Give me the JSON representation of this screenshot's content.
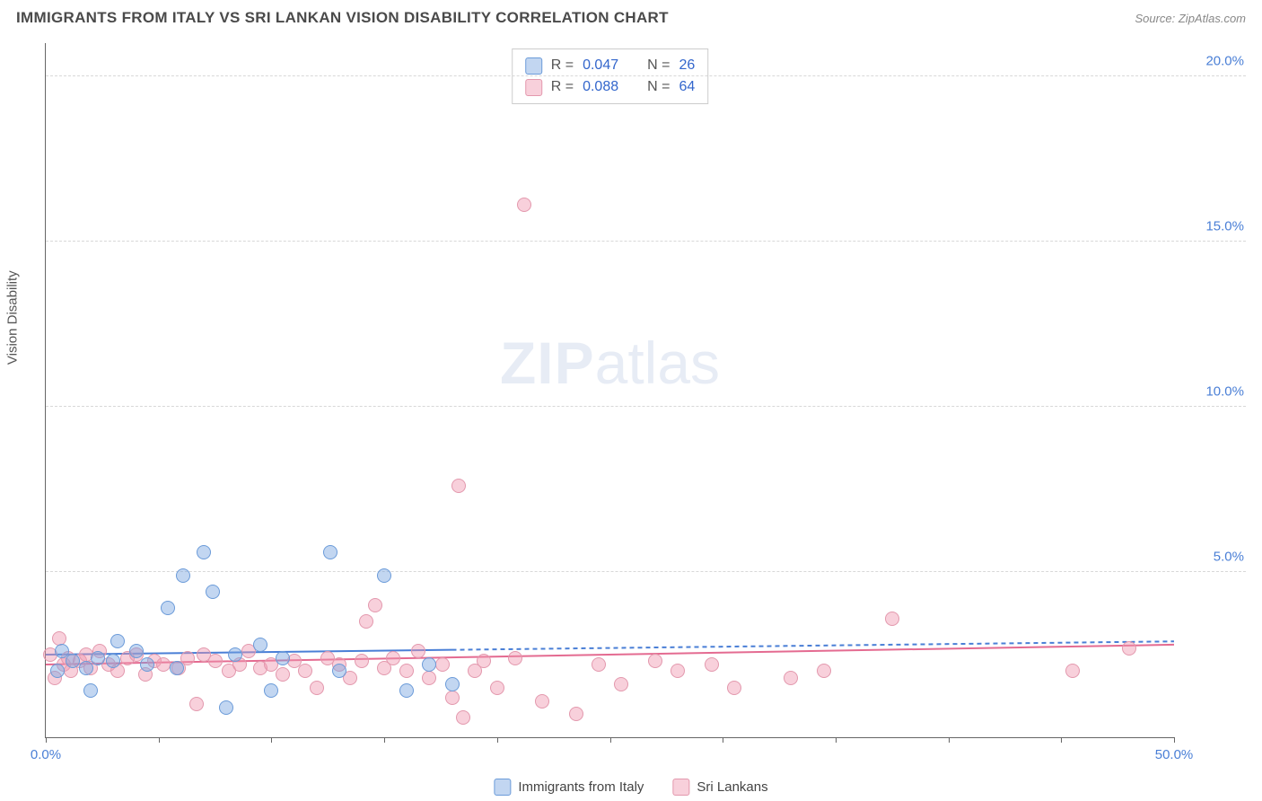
{
  "title": "IMMIGRANTS FROM ITALY VS SRI LANKAN VISION DISABILITY CORRELATION CHART",
  "source": "Source: ZipAtlas.com",
  "watermark_zip": "ZIP",
  "watermark_atlas": "atlas",
  "chart": {
    "type": "scatter",
    "y_label": "Vision Disability",
    "xlim": [
      0,
      50
    ],
    "ylim": [
      0,
      21
    ],
    "x_ticks": [
      0,
      5,
      10,
      15,
      20,
      25,
      30,
      35,
      40,
      45,
      50
    ],
    "x_tick_labels": {
      "0": "0.0%",
      "50": "50.0%"
    },
    "y_ticks": [
      5,
      10,
      15,
      20
    ],
    "y_tick_labels": {
      "5": "5.0%",
      "10": "10.0%",
      "15": "15.0%",
      "20": "20.0%"
    },
    "background_color": "#ffffff",
    "grid_color": "#d8d8d8",
    "point_radius": 8,
    "series": {
      "italy": {
        "label": "Immigrants from Italy",
        "fill_color": "rgba(120,165,225,0.45)",
        "stroke_color": "#6b9bd9",
        "R_label": "R =",
        "R": "0.047",
        "N_label": "N =",
        "N": "26",
        "trend": {
          "y0": 2.5,
          "y1": 2.9,
          "x_solid_end": 18,
          "dash_after": true,
          "color": "#4a7fd6",
          "width": 2
        },
        "points": [
          {
            "x": 0.5,
            "y": 2.0
          },
          {
            "x": 0.7,
            "y": 2.6
          },
          {
            "x": 1.2,
            "y": 2.3
          },
          {
            "x": 1.8,
            "y": 2.1
          },
          {
            "x": 2.0,
            "y": 1.4
          },
          {
            "x": 2.3,
            "y": 2.4
          },
          {
            "x": 3.0,
            "y": 2.3
          },
          {
            "x": 3.2,
            "y": 2.9
          },
          {
            "x": 4.0,
            "y": 2.6
          },
          {
            "x": 4.5,
            "y": 2.2
          },
          {
            "x": 5.4,
            "y": 3.9
          },
          {
            "x": 5.8,
            "y": 2.1
          },
          {
            "x": 6.1,
            "y": 4.9
          },
          {
            "x": 7.0,
            "y": 5.6
          },
          {
            "x": 7.4,
            "y": 4.4
          },
          {
            "x": 8.0,
            "y": 0.9
          },
          {
            "x": 8.4,
            "y": 2.5
          },
          {
            "x": 9.5,
            "y": 2.8
          },
          {
            "x": 10.0,
            "y": 1.4
          },
          {
            "x": 10.5,
            "y": 2.4
          },
          {
            "x": 12.6,
            "y": 5.6
          },
          {
            "x": 13.0,
            "y": 2.0
          },
          {
            "x": 15.0,
            "y": 4.9
          },
          {
            "x": 16.0,
            "y": 1.4
          },
          {
            "x": 17.0,
            "y": 2.2
          },
          {
            "x": 18.0,
            "y": 1.6
          }
        ]
      },
      "srilanka": {
        "label": "Sri Lankans",
        "fill_color": "rgba(240,150,175,0.45)",
        "stroke_color": "#e398ad",
        "R_label": "R =",
        "R": "0.088",
        "N_label": "N =",
        "N": "64",
        "trend": {
          "y0": 2.2,
          "y1": 2.8,
          "x_solid_end": 50,
          "dash_after": false,
          "color": "#e46b91",
          "width": 2
        },
        "points": [
          {
            "x": 0.2,
            "y": 2.5
          },
          {
            "x": 0.4,
            "y": 1.8
          },
          {
            "x": 0.6,
            "y": 3.0
          },
          {
            "x": 0.8,
            "y": 2.2
          },
          {
            "x": 1.0,
            "y": 2.4
          },
          {
            "x": 1.1,
            "y": 2.0
          },
          {
            "x": 1.5,
            "y": 2.3
          },
          {
            "x": 1.8,
            "y": 2.5
          },
          {
            "x": 2.0,
            "y": 2.1
          },
          {
            "x": 2.4,
            "y": 2.6
          },
          {
            "x": 2.8,
            "y": 2.2
          },
          {
            "x": 3.2,
            "y": 2.0
          },
          {
            "x": 3.6,
            "y": 2.4
          },
          {
            "x": 4.0,
            "y": 2.5
          },
          {
            "x": 4.4,
            "y": 1.9
          },
          {
            "x": 4.8,
            "y": 2.3
          },
          {
            "x": 5.2,
            "y": 2.2
          },
          {
            "x": 5.9,
            "y": 2.1
          },
          {
            "x": 6.3,
            "y": 2.4
          },
          {
            "x": 6.7,
            "y": 1.0
          },
          {
            "x": 7.0,
            "y": 2.5
          },
          {
            "x": 7.5,
            "y": 2.3
          },
          {
            "x": 8.1,
            "y": 2.0
          },
          {
            "x": 8.6,
            "y": 2.2
          },
          {
            "x": 9.0,
            "y": 2.6
          },
          {
            "x": 9.5,
            "y": 2.1
          },
          {
            "x": 10.0,
            "y": 2.2
          },
          {
            "x": 10.5,
            "y": 1.9
          },
          {
            "x": 11.0,
            "y": 2.3
          },
          {
            "x": 11.5,
            "y": 2.0
          },
          {
            "x": 12.0,
            "y": 1.5
          },
          {
            "x": 12.5,
            "y": 2.4
          },
          {
            "x": 13.0,
            "y": 2.2
          },
          {
            "x": 13.5,
            "y": 1.8
          },
          {
            "x": 14.0,
            "y": 2.3
          },
          {
            "x": 14.2,
            "y": 3.5
          },
          {
            "x": 14.6,
            "y": 4.0
          },
          {
            "x": 15.0,
            "y": 2.1
          },
          {
            "x": 15.4,
            "y": 2.4
          },
          {
            "x": 16.0,
            "y": 2.0
          },
          {
            "x": 16.5,
            "y": 2.6
          },
          {
            "x": 17.0,
            "y": 1.8
          },
          {
            "x": 17.6,
            "y": 2.2
          },
          {
            "x": 18.0,
            "y": 1.2
          },
          {
            "x": 18.3,
            "y": 7.6
          },
          {
            "x": 18.5,
            "y": 0.6
          },
          {
            "x": 19.0,
            "y": 2.0
          },
          {
            "x": 19.4,
            "y": 2.3
          },
          {
            "x": 20.0,
            "y": 1.5
          },
          {
            "x": 20.8,
            "y": 2.4
          },
          {
            "x": 21.2,
            "y": 16.1
          },
          {
            "x": 22.0,
            "y": 1.1
          },
          {
            "x": 23.5,
            "y": 0.7
          },
          {
            "x": 24.5,
            "y": 2.2
          },
          {
            "x": 25.5,
            "y": 1.6
          },
          {
            "x": 27.0,
            "y": 2.3
          },
          {
            "x": 28.0,
            "y": 2.0
          },
          {
            "x": 29.5,
            "y": 2.2
          },
          {
            "x": 30.5,
            "y": 1.5
          },
          {
            "x": 33.0,
            "y": 1.8
          },
          {
            "x": 34.5,
            "y": 2.0
          },
          {
            "x": 37.5,
            "y": 3.6
          },
          {
            "x": 45.5,
            "y": 2.0
          },
          {
            "x": 48.0,
            "y": 2.7
          }
        ]
      }
    }
  }
}
